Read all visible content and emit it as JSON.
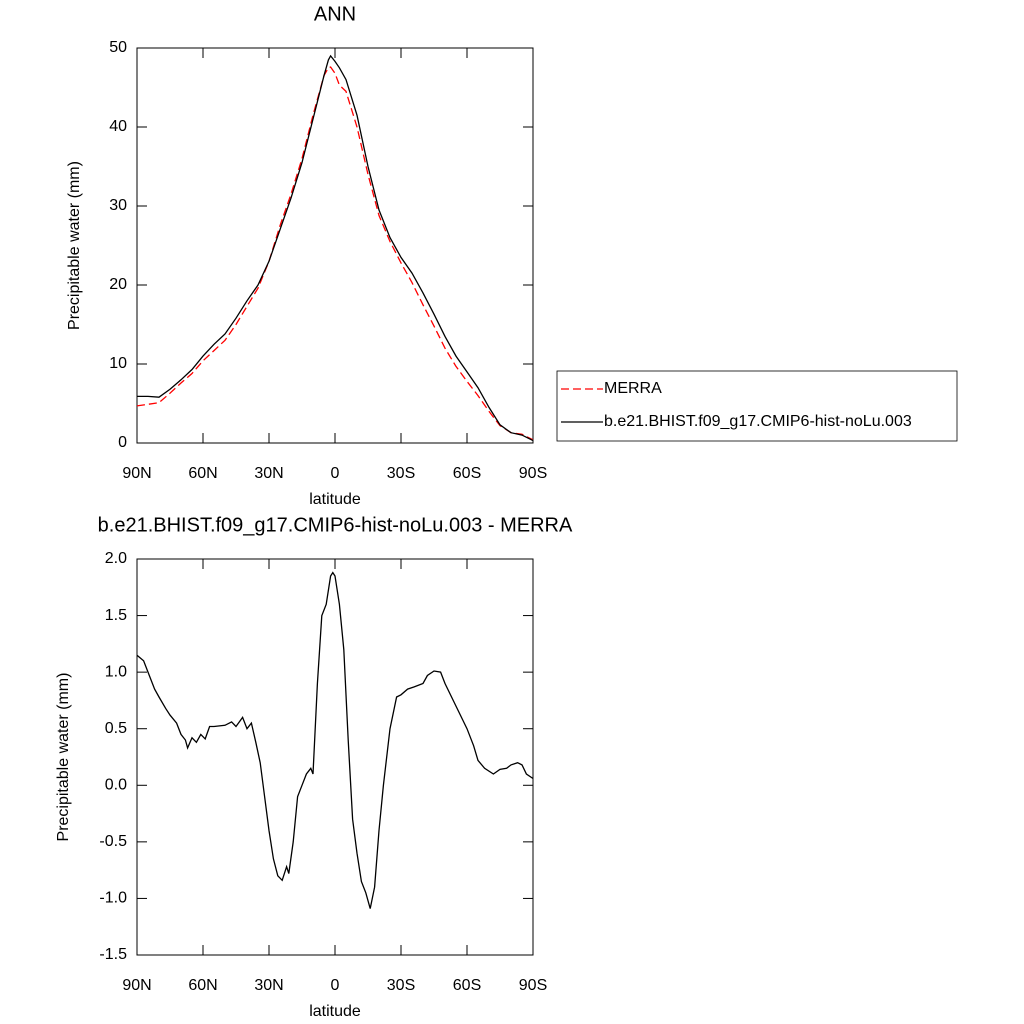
{
  "chart_data": [
    {
      "type": "line",
      "title": "ANN",
      "xlabel": "latitude",
      "ylabel": "Precipitable water (mm)",
      "x": [
        90,
        85,
        80,
        75,
        70,
        65,
        60,
        55,
        50,
        45,
        40,
        35,
        30,
        25,
        20,
        15,
        10,
        5,
        3,
        2,
        0,
        -2,
        -5,
        -10,
        -15,
        -20,
        -25,
        -30,
        -35,
        -40,
        -45,
        -50,
        -55,
        -60,
        -65,
        -70,
        -75,
        -80,
        -85,
        -90
      ],
      "series": [
        {
          "name": "MERRA",
          "color": "#ff0000",
          "dash": true,
          "values": [
            4.7,
            4.9,
            5.1,
            6.3,
            7.6,
            8.8,
            10.4,
            11.7,
            13,
            15,
            17.3,
            19.6,
            23,
            27.5,
            31.5,
            36,
            41.5,
            46.5,
            47.5,
            47.6,
            46.8,
            45.3,
            44.5,
            40,
            34,
            28.8,
            25.5,
            22.8,
            20.3,
            17.5,
            14.8,
            12,
            9.7,
            7.8,
            6,
            4,
            2.2,
            1.3,
            1.1,
            0.4
          ]
        },
        {
          "name": "b.e21.BHIST.f09_g17.CMIP6-hist-noLu.003",
          "color": "#000000",
          "dash": false,
          "values": [
            5.9,
            5.9,
            5.8,
            6.8,
            8,
            9.3,
            11,
            12.5,
            13.8,
            15.8,
            18,
            20,
            23,
            27,
            31,
            35.5,
            41,
            46.5,
            48.5,
            49,
            48.3,
            47.5,
            46,
            41.5,
            35,
            29.5,
            26,
            23.5,
            21.5,
            19,
            16.3,
            13.5,
            11,
            9,
            7,
            4.5,
            2.3,
            1.3,
            1,
            0.3
          ]
        }
      ],
      "xlim": [
        90,
        -90
      ],
      "xticks": [
        {
          "value": 90,
          "label": "90N"
        },
        {
          "value": 60,
          "label": "60N"
        },
        {
          "value": 30,
          "label": "30N"
        },
        0,
        {
          "value": -30,
          "label": "30S"
        },
        {
          "value": -60,
          "label": "60S"
        },
        {
          "value": -90,
          "label": "90S"
        }
      ],
      "ylim": [
        0,
        50
      ],
      "yticks": [
        0,
        10,
        20,
        30,
        40,
        50
      ],
      "legend": true
    },
    {
      "type": "line",
      "title": "b.e21.BHIST.f09_g17.CMIP6-hist-noLu.003 - MERRA",
      "xlabel": "latitude",
      "ylabel": "Precipitable water (mm)",
      "x": [
        90,
        87,
        85,
        82,
        80,
        77,
        75,
        72,
        70,
        68,
        67,
        65,
        63,
        61,
        59,
        57,
        55,
        50,
        47,
        45,
        42,
        40,
        38,
        36,
        34,
        32,
        30,
        28,
        26,
        24,
        22,
        21,
        19,
        17,
        15,
        13,
        11,
        10,
        8,
        6,
        4,
        2,
        1,
        0,
        -2,
        -4,
        -6,
        -8,
        -10,
        -12,
        -14,
        -16,
        -18,
        -20,
        -22,
        -25,
        -28,
        -30,
        -33,
        -36,
        -40,
        -42,
        -45,
        -48,
        -50,
        -55,
        -60,
        -63,
        -65,
        -68,
        -72,
        -75,
        -78,
        -80,
        -83,
        -85,
        -87,
        -90
      ],
      "values": [
        1.15,
        1.1,
        1.0,
        0.85,
        0.78,
        0.68,
        0.62,
        0.55,
        0.45,
        0.4,
        0.33,
        0.42,
        0.38,
        0.45,
        0.41,
        0.52,
        0.52,
        0.53,
        0.56,
        0.52,
        0.6,
        0.5,
        0.55,
        0.38,
        0.2,
        -0.1,
        -0.4,
        -0.65,
        -0.8,
        -0.84,
        -0.72,
        -0.78,
        -0.5,
        -0.1,
        0.0,
        0.1,
        0.15,
        0.1,
        0.9,
        1.5,
        1.6,
        1.85,
        1.88,
        1.85,
        1.6,
        1.2,
        0.4,
        -0.3,
        -0.6,
        -0.85,
        -0.95,
        -1.09,
        -0.9,
        -0.4,
        0.0,
        0.5,
        0.78,
        0.8,
        0.85,
        0.87,
        0.9,
        0.97,
        1.01,
        1.0,
        0.9,
        0.7,
        0.5,
        0.35,
        0.22,
        0.15,
        0.1,
        0.14,
        0.15,
        0.18,
        0.2,
        0.18,
        0.1,
        0.06
      ],
      "color": "#000000",
      "xlim": [
        90,
        -90
      ],
      "xticks": [
        {
          "value": 90,
          "label": "90N"
        },
        {
          "value": 60,
          "label": "60N"
        },
        {
          "value": 30,
          "label": "30N"
        },
        0,
        {
          "value": -30,
          "label": "30S"
        },
        {
          "value": -60,
          "label": "60S"
        },
        {
          "value": -90,
          "label": "90S"
        }
      ],
      "ylim": [
        -1.5,
        2
      ],
      "yticks": [
        {
          "value": 2,
          "label": "2.0"
        },
        1.5,
        {
          "value": 1,
          "label": "1.0"
        },
        0.5,
        {
          "value": 0,
          "label": "0.0"
        },
        -0.5,
        {
          "value": -1,
          "label": "-1.0"
        },
        -1.5
      ]
    }
  ]
}
